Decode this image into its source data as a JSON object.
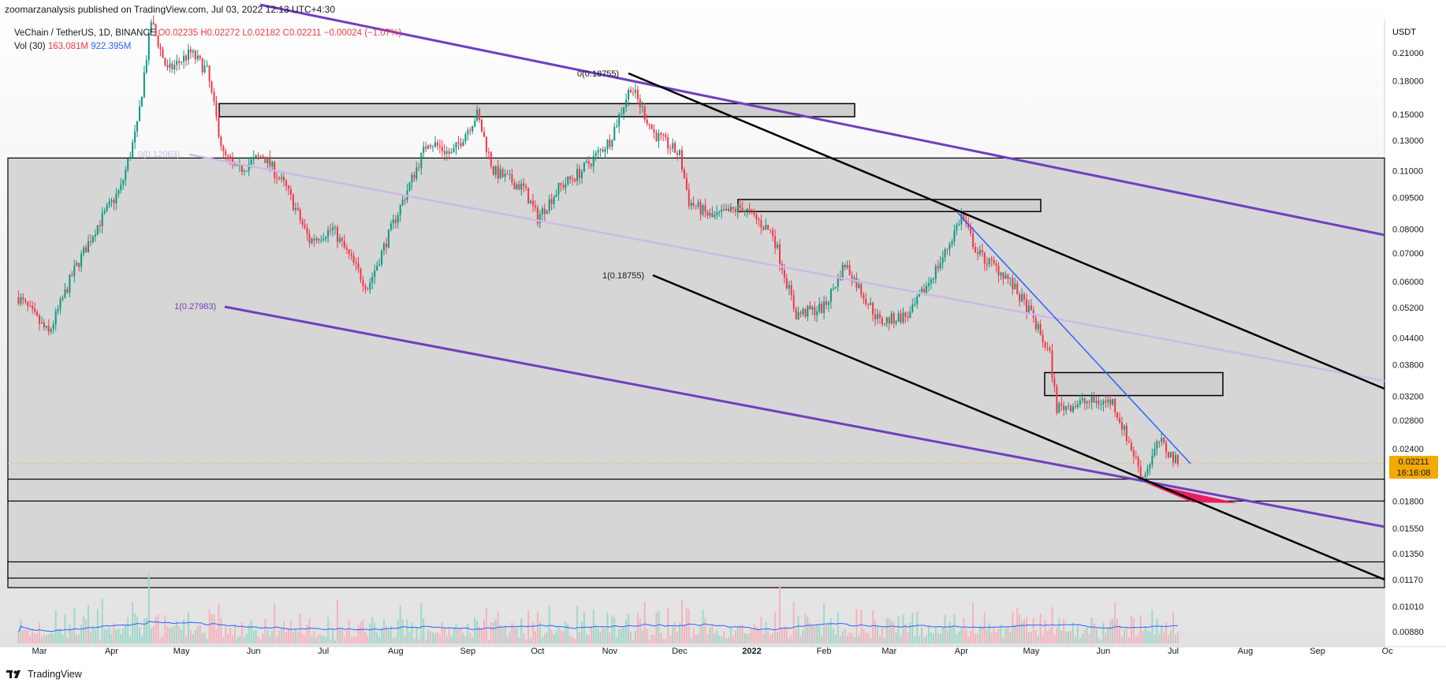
{
  "header": {
    "published": "zoomarzanalysis published on TradingView.com, Jul 03, 2022 12:13 UTC+4:30"
  },
  "legend": {
    "symbol": "VeChain / TetherUS, 1D, BINANCE",
    "ohlc": "O0.02235  H0.02272  L0.02182  C0.02211  −0.00024 (−1.07%)",
    "vol_label": "Vol (30)",
    "vol_a": "163.081M",
    "vol_b": "922.395M"
  },
  "price_axis": {
    "currency": "USDT",
    "last_price": "0.02211",
    "countdown": "16:16:08"
  },
  "annotations": {
    "fib_top": "0(0.18755)",
    "fib_mid": "1(0.18755)",
    "fib_low": "1(0.27983)",
    "fib_faint": "0(0.12063)"
  },
  "brand": {
    "name": "TradingView"
  },
  "colors": {
    "up": "#089981",
    "down": "#f23645",
    "channel": "#6f3fbf",
    "trend": "#2962ff",
    "zone": "#c8c8c8",
    "highlight": "#e91e63"
  },
  "chart_data": {
    "type": "candlestick",
    "title": "VeChain / TetherUS, 1D, BINANCE",
    "scale": "log",
    "ylabel": "USDT",
    "yticks": [
      0.21,
      0.18,
      0.15,
      0.13,
      0.11,
      0.095,
      0.08,
      0.07,
      0.06,
      0.052,
      0.044,
      0.038,
      0.032,
      0.028,
      0.024,
      0.018,
      0.0155,
      0.0135,
      0.0117,
      0.0101,
      0.0088
    ],
    "ytick_labels": [
      "0.21000",
      "0.18000",
      "0.15000",
      "0.13000",
      "0.11000",
      "0.09500",
      "0.08000",
      "0.07000",
      "0.06000",
      "0.05200",
      "0.04400",
      "0.03800",
      "0.03200",
      "0.02800",
      "0.02400",
      "0.01800",
      "0.01550",
      "0.01350",
      "0.01170",
      "0.01010",
      "0.00880"
    ],
    "xticks": [
      "Mar",
      "Apr",
      "May",
      "Jun",
      "Jul",
      "Aug",
      "Sep",
      "Oct",
      "Nov",
      "Dec",
      "2022",
      "Feb",
      "Mar",
      "Apr",
      "May",
      "Jun",
      "Jul",
      "Aug",
      "Sep",
      "Oc"
    ],
    "approx_close_path": [
      {
        "x": "2021-02-20",
        "y": 0.055
      },
      {
        "x": "2021-03-05",
        "y": 0.045
      },
      {
        "x": "2021-03-15",
        "y": 0.062
      },
      {
        "x": "2021-03-25",
        "y": 0.08
      },
      {
        "x": "2021-04-05",
        "y": 0.1
      },
      {
        "x": "2021-04-12",
        "y": 0.14
      },
      {
        "x": "2021-04-18",
        "y": 0.25
      },
      {
        "x": "2021-04-25",
        "y": 0.19
      },
      {
        "x": "2021-05-05",
        "y": 0.21
      },
      {
        "x": "2021-05-12",
        "y": 0.19
      },
      {
        "x": "2021-05-19",
        "y": 0.12
      },
      {
        "x": "2021-05-25",
        "y": 0.11
      },
      {
        "x": "2021-06-05",
        "y": 0.12
      },
      {
        "x": "2021-06-15",
        "y": 0.1
      },
      {
        "x": "2021-06-25",
        "y": 0.075
      },
      {
        "x": "2021-07-05",
        "y": 0.08
      },
      {
        "x": "2021-07-20",
        "y": 0.058
      },
      {
        "x": "2021-08-01",
        "y": 0.085
      },
      {
        "x": "2021-08-15",
        "y": 0.13
      },
      {
        "x": "2021-08-25",
        "y": 0.12
      },
      {
        "x": "2021-09-05",
        "y": 0.15
      },
      {
        "x": "2021-09-12",
        "y": 0.11
      },
      {
        "x": "2021-09-25",
        "y": 0.1
      },
      {
        "x": "2021-10-01",
        "y": 0.085
      },
      {
        "x": "2021-10-10",
        "y": 0.1
      },
      {
        "x": "2021-10-20",
        "y": 0.11
      },
      {
        "x": "2021-11-01",
        "y": 0.13
      },
      {
        "x": "2021-11-10",
        "y": 0.175
      },
      {
        "x": "2021-11-20",
        "y": 0.135
      },
      {
        "x": "2021-12-01",
        "y": 0.12
      },
      {
        "x": "2021-12-05",
        "y": 0.093
      },
      {
        "x": "2021-12-15",
        "y": 0.085
      },
      {
        "x": "2021-12-28",
        "y": 0.09
      },
      {
        "x": "2022-01-10",
        "y": 0.078
      },
      {
        "x": "2022-01-20",
        "y": 0.05
      },
      {
        "x": "2022-02-01",
        "y": 0.052
      },
      {
        "x": "2022-02-10",
        "y": 0.066
      },
      {
        "x": "2022-02-25",
        "y": 0.048
      },
      {
        "x": "2022-03-10",
        "y": 0.05
      },
      {
        "x": "2022-03-25",
        "y": 0.07
      },
      {
        "x": "2022-04-01",
        "y": 0.086
      },
      {
        "x": "2022-04-08",
        "y": 0.07
      },
      {
        "x": "2022-04-20",
        "y": 0.062
      },
      {
        "x": "2022-05-01",
        "y": 0.05
      },
      {
        "x": "2022-05-09",
        "y": 0.04
      },
      {
        "x": "2022-05-12",
        "y": 0.03
      },
      {
        "x": "2022-05-25",
        "y": 0.031
      },
      {
        "x": "2022-06-05",
        "y": 0.031
      },
      {
        "x": "2022-06-13",
        "y": 0.024
      },
      {
        "x": "2022-06-18",
        "y": 0.0205
      },
      {
        "x": "2022-06-25",
        "y": 0.025
      },
      {
        "x": "2022-07-03",
        "y": 0.0221
      }
    ],
    "last_price": 0.02211,
    "volume_ma_length": 30
  }
}
